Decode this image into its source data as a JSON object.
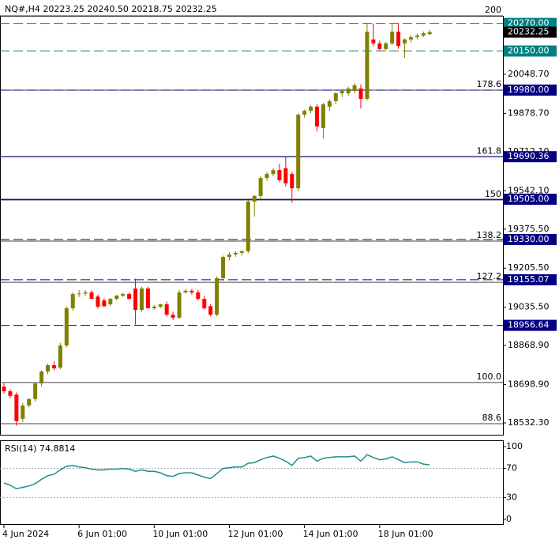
{
  "chart_data": {
    "type": "candlestick",
    "title": "NQ#,H4  20223.25 20240.50 20218.75 20232.25",
    "ylim": [
      18480.7,
      20303.1
    ],
    "yticks": [
      {
        "value": 20048.7,
        "label": "20048.70"
      },
      {
        "value": 19878.7,
        "label": "19878.70"
      },
      {
        "value": 19712.1,
        "label": "19712.10"
      },
      {
        "value": 19542.1,
        "label": "19542.10"
      },
      {
        "value": 19375.5,
        "label": "19375.50"
      },
      {
        "value": 19205.5,
        "label": "19205.50"
      },
      {
        "value": 19035.5,
        "label": "19035.50"
      },
      {
        "value": 18868.9,
        "label": "18868.90"
      },
      {
        "value": 18698.9,
        "label": "18698.90"
      },
      {
        "value": 18532.3,
        "label": "18532.30"
      }
    ],
    "xticks": [
      {
        "value": 0,
        "label": "4 Jun 2024"
      },
      {
        "value": 12,
        "label": "6 Jun 01:00"
      },
      {
        "value": 24,
        "label": "10 Jun 01:00"
      },
      {
        "value": 36,
        "label": "12 Jun 01:00"
      },
      {
        "value": 48,
        "label": "14 Jun 01:00"
      },
      {
        "value": 60,
        "label": "18 Jun 01:00"
      }
    ],
    "up_color": "#808000",
    "down_color": "#ff0000",
    "ohlc": [
      [
        18690,
        18705,
        18660,
        18670
      ],
      [
        18670,
        18680,
        18640,
        18650
      ],
      [
        18655,
        18665,
        18520,
        18540
      ],
      [
        18550,
        18620,
        18535,
        18608
      ],
      [
        18608,
        18640,
        18600,
        18636
      ],
      [
        18636,
        18710,
        18625,
        18704
      ],
      [
        18704,
        18760,
        18690,
        18756
      ],
      [
        18756,
        18790,
        18745,
        18783
      ],
      [
        18783,
        18800,
        18760,
        18770
      ],
      [
        18773,
        18880,
        18765,
        18869
      ],
      [
        18869,
        19040,
        18860,
        19031
      ],
      [
        19031,
        19100,
        19020,
        19093
      ],
      [
        19093,
        19110,
        19080,
        19095
      ],
      [
        19095,
        19110,
        19085,
        19100
      ],
      [
        19100,
        19110,
        19070,
        19072
      ],
      [
        19082,
        19090,
        19030,
        19038
      ],
      [
        19065,
        19075,
        19035,
        19040
      ],
      [
        19048,
        19075,
        19040,
        19072
      ],
      [
        19072,
        19090,
        19065,
        19086
      ],
      [
        19086,
        19098,
        19080,
        19093
      ],
      [
        19093,
        19100,
        19070,
        19072
      ],
      [
        19117,
        19160,
        18960,
        19024
      ],
      [
        19024,
        19125,
        19015,
        19117
      ],
      [
        19117,
        19125,
        19030,
        19031
      ],
      [
        19031,
        19045,
        19025,
        19038
      ],
      [
        19038,
        19050,
        19030,
        19048
      ],
      [
        19048,
        19060,
        18995,
        19003
      ],
      [
        19003,
        19015,
        18980,
        18990
      ],
      [
        18990,
        19110,
        18985,
        19100
      ],
      [
        19100,
        19115,
        19095,
        19107
      ],
      [
        19107,
        19115,
        19090,
        19100
      ],
      [
        19100,
        19110,
        19065,
        19072
      ],
      [
        19072,
        19085,
        19025,
        19031
      ],
      [
        19040,
        19050,
        18995,
        19003
      ],
      [
        19003,
        19170,
        18995,
        19162
      ],
      [
        19162,
        19260,
        19150,
        19254
      ],
      [
        19254,
        19275,
        19240,
        19265
      ],
      [
        19265,
        19280,
        19255,
        19272
      ],
      [
        19272,
        19285,
        19260,
        19279
      ],
      [
        19279,
        19500,
        19270,
        19495
      ],
      [
        19495,
        19525,
        19430,
        19519
      ],
      [
        19519,
        19605,
        19505,
        19598
      ],
      [
        19598,
        19625,
        19585,
        19615
      ],
      [
        19615,
        19640,
        19605,
        19632
      ],
      [
        19632,
        19660,
        19580,
        19588
      ],
      [
        19640,
        19690,
        19560,
        19574
      ],
      [
        19615,
        19625,
        19490,
        19553
      ],
      [
        19553,
        19880,
        19540,
        19873
      ],
      [
        19873,
        19895,
        19860,
        19890
      ],
      [
        19890,
        19915,
        19880,
        19908
      ],
      [
        19908,
        19920,
        19800,
        19822
      ],
      [
        19815,
        19925,
        19770,
        19918
      ],
      [
        19908,
        19940,
        19890,
        19932
      ],
      [
        19932,
        19970,
        19920,
        19966
      ],
      [
        19966,
        19985,
        19950,
        19976
      ],
      [
        19966,
        19995,
        19955,
        19987
      ],
      [
        19976,
        20010,
        19965,
        20001
      ],
      [
        19987,
        20005,
        19900,
        19942
      ],
      [
        19942,
        20270,
        19935,
        20234
      ],
      [
        20200,
        20270,
        20170,
        20183
      ],
      [
        20183,
        20195,
        20150,
        20159
      ],
      [
        20159,
        20190,
        20150,
        20183
      ],
      [
        20183,
        20270,
        20175,
        20234
      ],
      [
        20234,
        20270,
        20160,
        20172
      ],
      [
        20183,
        20205,
        20120,
        20200
      ],
      [
        20200,
        20220,
        20185,
        20210
      ],
      [
        20210,
        20225,
        20200,
        20217
      ],
      [
        20217,
        20235,
        20210,
        20227
      ],
      [
        20223.25,
        20240.5,
        20218.75,
        20232.25
      ]
    ],
    "levels": [
      {
        "value": 20270,
        "label": "20270.00",
        "style": "dashed",
        "color": "#008080"
      },
      {
        "value": 20150,
        "label": "20150.00",
        "style": "dashed",
        "color": "#008080"
      },
      {
        "value": 19980,
        "label": "19980.00",
        "style": "dashed",
        "color": "#000080"
      },
      {
        "value": 19690.36,
        "label": "19690.36",
        "style": "solid",
        "color": "#000080"
      },
      {
        "value": 19505,
        "label": "19505.00",
        "style": "solid",
        "color": "#000080"
      },
      {
        "value": 19330,
        "label": "19330.00",
        "style": "dashed",
        "color": "#000080"
      },
      {
        "value": 19155.07,
        "label": "19155.07",
        "style": "dashed",
        "color": "#000080"
      },
      {
        "value": 18956.64,
        "label": "18956.64",
        "style": "dashed",
        "color": "#000080"
      }
    ],
    "fibo": [
      {
        "label": "200",
        "price": 20303
      },
      {
        "label": "178.6",
        "price": 19980
      },
      {
        "label": "161.8",
        "price": 19690
      },
      {
        "label": "150",
        "price": 19502
      },
      {
        "label": "138.2",
        "price": 19323
      },
      {
        "label": "127.2",
        "price": 19144
      },
      {
        "label": "100.0",
        "price": 18708
      },
      {
        "label": "88.6",
        "price": 18529
      }
    ],
    "price": {
      "value": 20232.25,
      "label": "20232.25"
    },
    "rsi": {
      "label": "RSI(14) 74.8814",
      "color": "#1e8c8c",
      "ylim": [
        0,
        100
      ],
      "yticks": [
        100,
        70,
        30,
        0
      ],
      "levels": [
        70,
        30
      ],
      "values": [
        50,
        47,
        42,
        44,
        46,
        49,
        55,
        60,
        62,
        68,
        73,
        74,
        72,
        71,
        69,
        68,
        68,
        69,
        69,
        70,
        69,
        66,
        68,
        66,
        66,
        64,
        60,
        59,
        63,
        64,
        64,
        61,
        58,
        56,
        63,
        70,
        71,
        72,
        72,
        77,
        78,
        82,
        85,
        87,
        84,
        80,
        74,
        84,
        85,
        87,
        80,
        84,
        85,
        86,
        86,
        86,
        87,
        80,
        89,
        85,
        82,
        83,
        86,
        82,
        78,
        79,
        79,
        76,
        74.8814
      ]
    }
  }
}
